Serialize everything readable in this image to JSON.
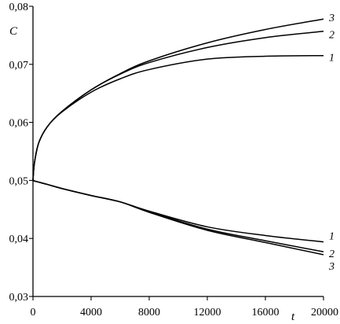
{
  "chart_data": {
    "type": "line",
    "xlabel": "t",
    "ylabel": "C",
    "xlim": [
      0,
      20000
    ],
    "ylim": [
      0.03,
      0.08
    ],
    "x_ticks": [
      {
        "value": 0,
        "label": "0"
      },
      {
        "value": 4000,
        "label": "4000"
      },
      {
        "value": 8000,
        "label": "8000"
      },
      {
        "value": 12000,
        "label": "12000"
      },
      {
        "value": 16000,
        "label": "16000"
      },
      {
        "value": 20000,
        "label": "20000"
      }
    ],
    "y_ticks": [
      {
        "value": 0.03,
        "label": "0,03"
      },
      {
        "value": 0.04,
        "label": "0,04"
      },
      {
        "value": 0.05,
        "label": "0,05"
      },
      {
        "value": 0.06,
        "label": "0,06"
      },
      {
        "value": 0.07,
        "label": "0,07"
      },
      {
        "value": 0.08,
        "label": "0,08"
      }
    ],
    "grid": false,
    "x": [
      0,
      100,
      400,
      1000,
      2000,
      4000,
      6000,
      8000,
      12000,
      16000,
      20000
    ],
    "series": [
      {
        "name": "1",
        "group": "upper",
        "values": [
          0.05,
          0.053,
          0.0565,
          0.0593,
          0.0618,
          0.0652,
          0.0675,
          0.0691,
          0.0709,
          0.0714,
          0.0715
        ]
      },
      {
        "name": "2",
        "group": "upper",
        "values": [
          0.05,
          0.053,
          0.0565,
          0.0593,
          0.0619,
          0.0656,
          0.0683,
          0.0703,
          0.0729,
          0.0746,
          0.0757
        ]
      },
      {
        "name": "3",
        "group": "upper",
        "values": [
          0.05,
          0.053,
          0.0565,
          0.0593,
          0.0619,
          0.0656,
          0.0684,
          0.0706,
          0.0737,
          0.076,
          0.0778
        ]
      },
      {
        "name": "1",
        "group": "lower",
        "values": [
          0.05,
          0.0499,
          0.0497,
          0.0493,
          0.0486,
          0.0474,
          0.0463,
          0.0447,
          0.042,
          0.0405,
          0.0394
        ]
      },
      {
        "name": "2",
        "group": "lower",
        "values": [
          0.05,
          0.0499,
          0.0497,
          0.0493,
          0.0486,
          0.0474,
          0.0463,
          0.0446,
          0.0416,
          0.0396,
          0.0377
        ]
      },
      {
        "name": "3",
        "group": "lower",
        "values": [
          0.05,
          0.0499,
          0.0497,
          0.0493,
          0.0486,
          0.0474,
          0.0463,
          0.0445,
          0.0414,
          0.0393,
          0.0372
        ]
      }
    ]
  }
}
